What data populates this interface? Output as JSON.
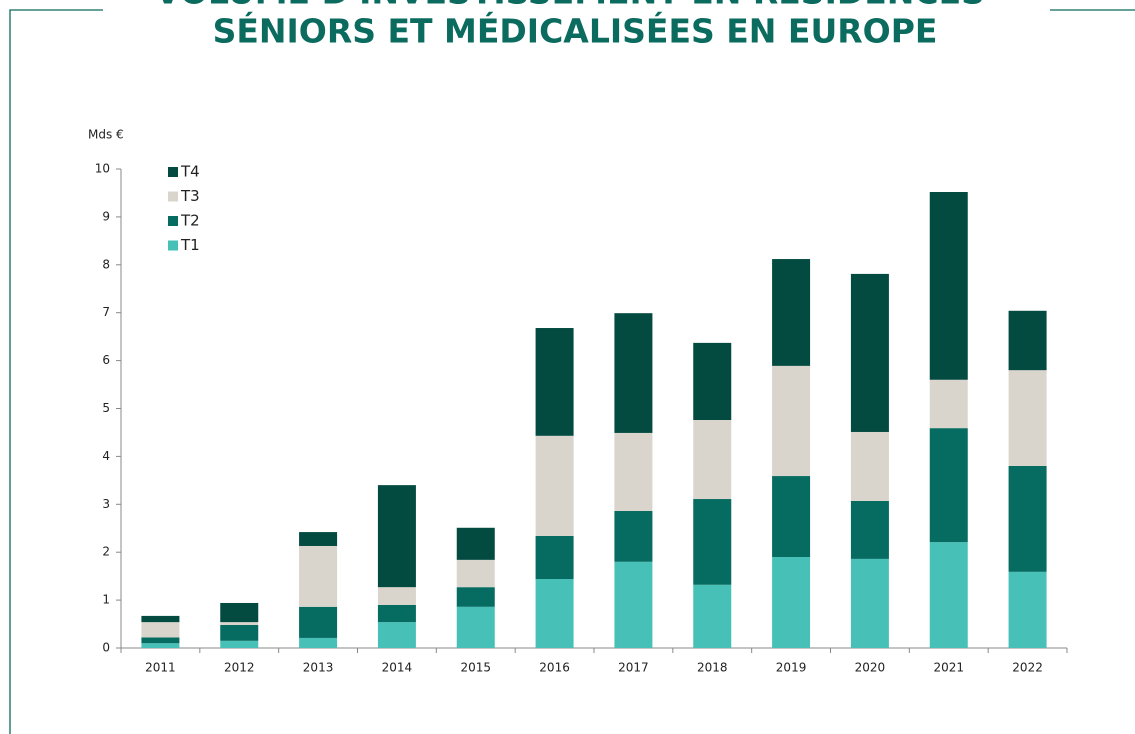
{
  "chart_data": {
    "type": "stacked-bar",
    "title": [
      "VOLUME D'INVESTISSEMENT EN RÉSIDENCES",
      "SÉNIORS ET MÉDICALISÉES EN EUROPE"
    ],
    "y_label": "Mds €",
    "categories": [
      "2011",
      "2012",
      "2013",
      "2014",
      "2015",
      "2016",
      "2017",
      "2018",
      "2019",
      "2020",
      "2021",
      "2022"
    ],
    "series": [
      {
        "name": "T1",
        "color": "#47c1b8",
        "values": [
          0.1,
          0.15,
          0.21,
          0.54,
          0.86,
          1.44,
          1.8,
          1.32,
          1.9,
          1.86,
          2.21,
          1.59
        ]
      },
      {
        "name": "T2",
        "color": "#066b60",
        "values": [
          0.12,
          0.33,
          0.65,
          0.36,
          0.41,
          0.9,
          1.06,
          1.79,
          1.69,
          1.21,
          2.38,
          2.21
        ]
      },
      {
        "name": "T3",
        "color": "#d9d5cc",
        "values": [
          0.32,
          0.06,
          1.27,
          0.37,
          0.57,
          2.09,
          1.63,
          1.65,
          2.3,
          1.44,
          1.01,
          2.0
        ]
      },
      {
        "name": "T4",
        "color": "#034a40",
        "values": [
          0.13,
          0.4,
          0.29,
          2.13,
          0.67,
          2.25,
          2.5,
          1.61,
          2.23,
          3.3,
          3.92,
          1.24
        ]
      }
    ],
    "ylim": [
      0,
      10
    ],
    "yticks": [
      0,
      1,
      2,
      3,
      4,
      5,
      6,
      7,
      8,
      9,
      10
    ],
    "grid": false,
    "legend": "top-left"
  }
}
